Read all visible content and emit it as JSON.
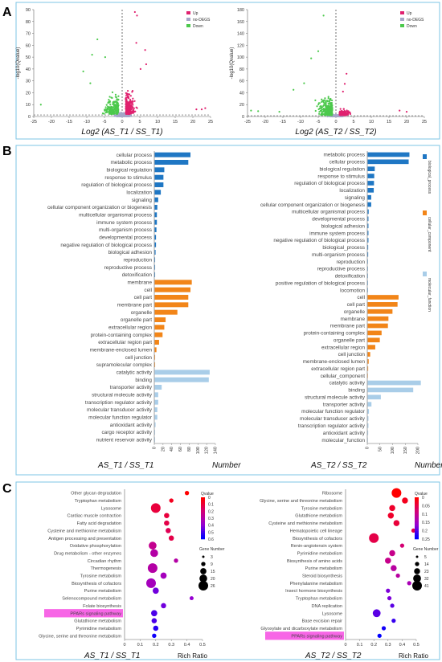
{
  "panels": {
    "a": "A",
    "b": "B",
    "c": "C"
  },
  "colors": {
    "up": "#e0216f",
    "nodeg": "#a6a6c8",
    "down": "#4cc94c",
    "bp": "#1f77c4",
    "cc": "#f28518",
    "mf": "#a9cde8",
    "frame": "#7ec4e6"
  },
  "chart_data": [
    {
      "id": "volcano1",
      "type": "scatter",
      "xlabel": "Log2 (AS_T1 / SS_T1)",
      "ylabel": "-log10(Qvalue)",
      "xlim": [
        -25,
        25
      ],
      "ylim": [
        0,
        90
      ],
      "xticks": [
        -25,
        -20,
        -15,
        -10,
        -5,
        0,
        5,
        10,
        15,
        20,
        25
      ],
      "yticks": [
        0,
        10,
        20,
        30,
        40,
        50,
        60,
        70,
        80,
        90
      ],
      "legend": [
        "Up",
        "no-DEGS",
        "Down"
      ],
      "threshold_y": 1.3,
      "legend_position": "top-right"
    },
    {
      "id": "volcano2",
      "type": "scatter",
      "xlabel": "Log2 (AS_T2 / SS_T2)",
      "ylabel": "-log10(Qvalue)",
      "xlim": [
        -25,
        25
      ],
      "ylim": [
        0,
        180
      ],
      "xticks": [
        -25,
        -20,
        -15,
        -10,
        -5,
        0,
        5,
        10,
        15,
        20,
        25
      ],
      "yticks": [
        0,
        20,
        40,
        60,
        80,
        100,
        120,
        140,
        160,
        180
      ],
      "legend": [
        "Up",
        "no-DEGS",
        "Down"
      ],
      "threshold_y": 1.3,
      "legend_position": "top-right"
    },
    {
      "id": "go1",
      "type": "bar",
      "xlabel": "AS_T1 / SS_T1",
      "xunit": "Number",
      "xlim": [
        0,
        140
      ],
      "xticks": [
        0,
        20,
        40,
        60,
        80,
        100,
        120,
        140
      ],
      "categories": [
        "cellular process",
        "metabolic process",
        "biological regulation",
        "response to stimulus",
        "regulation of biological process",
        "localization",
        "signaling",
        "cellular component organization or biogenesis",
        "multicellular organismal process",
        "immune system process",
        "multi-organism process",
        "developmental process",
        "negative regulation of biological process",
        "biological adhesion",
        "reproduction",
        "reproductive process",
        "detoxification",
        "membrane",
        "cell",
        "cell part",
        "membrane part",
        "organelle",
        "organelle part",
        "extracellular region",
        "protein-containing complex",
        "extracellular region part",
        "membrane-enclosed lumen",
        "cell junction",
        "supramolecular complex",
        "catalytic activity",
        "binding",
        "transporter activity",
        "structural molecule activity",
        "transcription regulator activity",
        "molecular transducer activity",
        "molecular function regulator",
        "antioxidant activity",
        "cargo receptor activity",
        "nutrient reservoir activity"
      ],
      "groups": [
        "bp",
        "bp",
        "bp",
        "bp",
        "bp",
        "bp",
        "bp",
        "bp",
        "bp",
        "bp",
        "bp",
        "bp",
        "bp",
        "bp",
        "bp",
        "bp",
        "bp",
        "cc",
        "cc",
        "cc",
        "cc",
        "cc",
        "cc",
        "cc",
        "cc",
        "cc",
        "cc",
        "cc",
        "cc",
        "mf",
        "mf",
        "mf",
        "mf",
        "mf",
        "mf",
        "mf",
        "mf",
        "mf",
        "mf"
      ],
      "values": [
        82,
        77,
        22,
        20,
        20,
        14,
        8,
        6,
        5,
        5,
        4,
        3,
        3,
        2,
        1,
        1,
        1,
        85,
        82,
        77,
        77,
        52,
        25,
        22,
        18,
        10,
        4,
        1,
        1,
        126,
        124,
        16,
        8,
        8,
        6,
        6,
        2,
        1,
        1
      ]
    },
    {
      "id": "go2",
      "type": "bar",
      "xlabel": "AS_T2 / SS_T2",
      "xunit": "Number",
      "xlim": [
        0,
        200
      ],
      "xticks": [
        0,
        50,
        100,
        150,
        200
      ],
      "legend": [
        "biological_process",
        "cellular_component",
        "molecular_function"
      ],
      "legend_position": "right",
      "categories": [
        "metabolic process",
        "cellular process",
        "biological regulation",
        "response to stimulus",
        "regulation of biological process",
        "localization",
        "signaling",
        "cellular component organization or biogenesis",
        "multicellular organismal process",
        "developmental process",
        "biological adhesion",
        "immune system process",
        "negative regulation of biological process",
        "biological_process",
        "multi-organism process",
        "reproduction",
        "reproductive process",
        "detoxification",
        "positive regulation of biological process",
        "locomotion",
        "cell",
        "cell part",
        "organelle",
        "membrane",
        "membrane part",
        "protein-containing complex",
        "organelle part",
        "extracellular region",
        "cell junction",
        "membrane-enclosed lumen",
        "extracellular region part",
        "cellular_component",
        "catalytic activity",
        "binding",
        "structural molecule activity",
        "transporter activity",
        "molecular function regulator",
        "molecular transducer activity",
        "transcription regulator activity",
        "antioxidant activity",
        "molecular_function"
      ],
      "groups": [
        "bp",
        "bp",
        "bp",
        "bp",
        "bp",
        "bp",
        "bp",
        "bp",
        "bp",
        "bp",
        "bp",
        "bp",
        "bp",
        "bp",
        "bp",
        "bp",
        "bp",
        "bp",
        "bp",
        "bp",
        "cc",
        "cc",
        "cc",
        "cc",
        "cc",
        "cc",
        "cc",
        "cc",
        "cc",
        "cc",
        "cc",
        "cc",
        "mf",
        "mf",
        "mf",
        "mf",
        "mf",
        "mf",
        "mf",
        "mf",
        "mf"
      ],
      "values": [
        165,
        162,
        28,
        26,
        25,
        24,
        14,
        14,
        4,
        3,
        3,
        3,
        3,
        2,
        2,
        1,
        1,
        1,
        1,
        1,
        122,
        118,
        98,
        82,
        80,
        55,
        48,
        30,
        10,
        4,
        2,
        1,
        210,
        180,
        52,
        15,
        5,
        3,
        3,
        2,
        1
      ]
    },
    {
      "id": "kegg1",
      "type": "scatter",
      "xlabel": "AS_T1 / SS_T1",
      "xunit": "Rich Ratio",
      "xlim": [
        0,
        0.5
      ],
      "xticks": [
        0,
        0.1,
        0.2,
        0.3,
        0.4,
        0.5
      ],
      "color_legend_title": "Qvalue",
      "color_ticks": [
        "0",
        "0.1",
        "0.2",
        "0.3",
        "0.4",
        "0.5",
        "0.6"
      ],
      "color_range": [
        0,
        0.6
      ],
      "size_legend_title": "Gene Number",
      "size_ticks": [
        3,
        9,
        15,
        20,
        26
      ],
      "highlight": "PPARs signaling pathway",
      "categories": [
        "Other glycan degradation",
        "Tryptophan metabolism",
        "Lysosome",
        "Cardiac muscle contraction",
        "Fatty acid degradation",
        "Cysteine and methionine metabolism",
        "Antigen processing and presentation",
        "Oxidative phosphorylation",
        "Drug metabolism - other enzymes",
        "Circadian rhythm",
        "Thermogenesis",
        "Tyrosine metabolism",
        "Biosynthesis of cofactors",
        "Purine metabolism",
        "Selenocompound metabolism",
        "Folate biosynthesis",
        "PPARs signaling pathway",
        "Glutathione metabolism",
        "Pyrimidine metabolism",
        "Glycine, serine and threonine metabolism"
      ],
      "ratio": [
        0.4,
        0.3,
        0.2,
        0.27,
        0.27,
        0.28,
        0.3,
        0.18,
        0.19,
        0.33,
        0.18,
        0.25,
        0.17,
        0.2,
        0.43,
        0.25,
        0.19,
        0.19,
        0.2,
        0.19
      ],
      "qvalue": [
        0.0,
        0.05,
        0.1,
        0.1,
        0.12,
        0.14,
        0.12,
        0.25,
        0.3,
        0.3,
        0.3,
        0.35,
        0.35,
        0.45,
        0.4,
        0.45,
        0.5,
        0.5,
        0.55,
        0.58
      ],
      "genes": [
        9,
        9,
        26,
        12,
        12,
        12,
        12,
        20,
        20,
        9,
        26,
        15,
        26,
        15,
        8,
        12,
        15,
        12,
        12,
        9
      ]
    },
    {
      "id": "kegg2",
      "type": "scatter",
      "xlabel": "AS_T2 / SS_T2",
      "xunit": "Rich Ratio",
      "xlim": [
        0,
        0.5
      ],
      "xticks": [
        0,
        0.1,
        0.2,
        0.3,
        0.4,
        0.5
      ],
      "color_legend_title": "Qvalue",
      "color_ticks": [
        "0",
        "0.05",
        "0.1",
        "0.15",
        "0.2",
        "0.25"
      ],
      "color_range": [
        0,
        0.25
      ],
      "size_legend_title": "Gene Number",
      "size_ticks": [
        5,
        14,
        23,
        32,
        41
      ],
      "highlight": "PPARs signaling pathway",
      "categories": [
        "Ribosome",
        "Glycine, serine and threonine metabolism",
        "Tyrosine metabolism",
        "Glutathione metabolism",
        "Cysteine and methionine metabolism",
        "Hematopoietic cell lineage",
        "Biosynthesis of cofactors",
        "Renin-angiotensin system",
        "Pyrimidine metabolism",
        "Biosynthesis of amino acids",
        "Purine metabolism",
        "Steroid biosynthesis",
        "Phenylalanine metabolism",
        "Insect hormone biosynthesis",
        "Tryptophan metabolism",
        "DNA replication",
        "Lysosome",
        "Base excision repair",
        "Glyoxylate and dicarboxylate metabolism",
        "PPARs signaling pathway"
      ],
      "ratio": [
        0.36,
        0.42,
        0.33,
        0.32,
        0.36,
        0.48,
        0.2,
        0.4,
        0.33,
        0.3,
        0.34,
        0.37,
        0.45,
        0.3,
        0.31,
        0.33,
        0.22,
        0.34,
        0.27,
        0.24
      ],
      "qvalue": [
        0.0,
        0.02,
        0.03,
        0.03,
        0.04,
        0.05,
        0.05,
        0.08,
        0.1,
        0.1,
        0.12,
        0.12,
        0.14,
        0.18,
        0.18,
        0.2,
        0.2,
        0.22,
        0.24,
        0.25
      ],
      "genes": [
        41,
        23,
        23,
        23,
        23,
        14,
        41,
        14,
        23,
        23,
        23,
        14,
        14,
        14,
        14,
        14,
        32,
        14,
        14,
        14
      ]
    }
  ]
}
